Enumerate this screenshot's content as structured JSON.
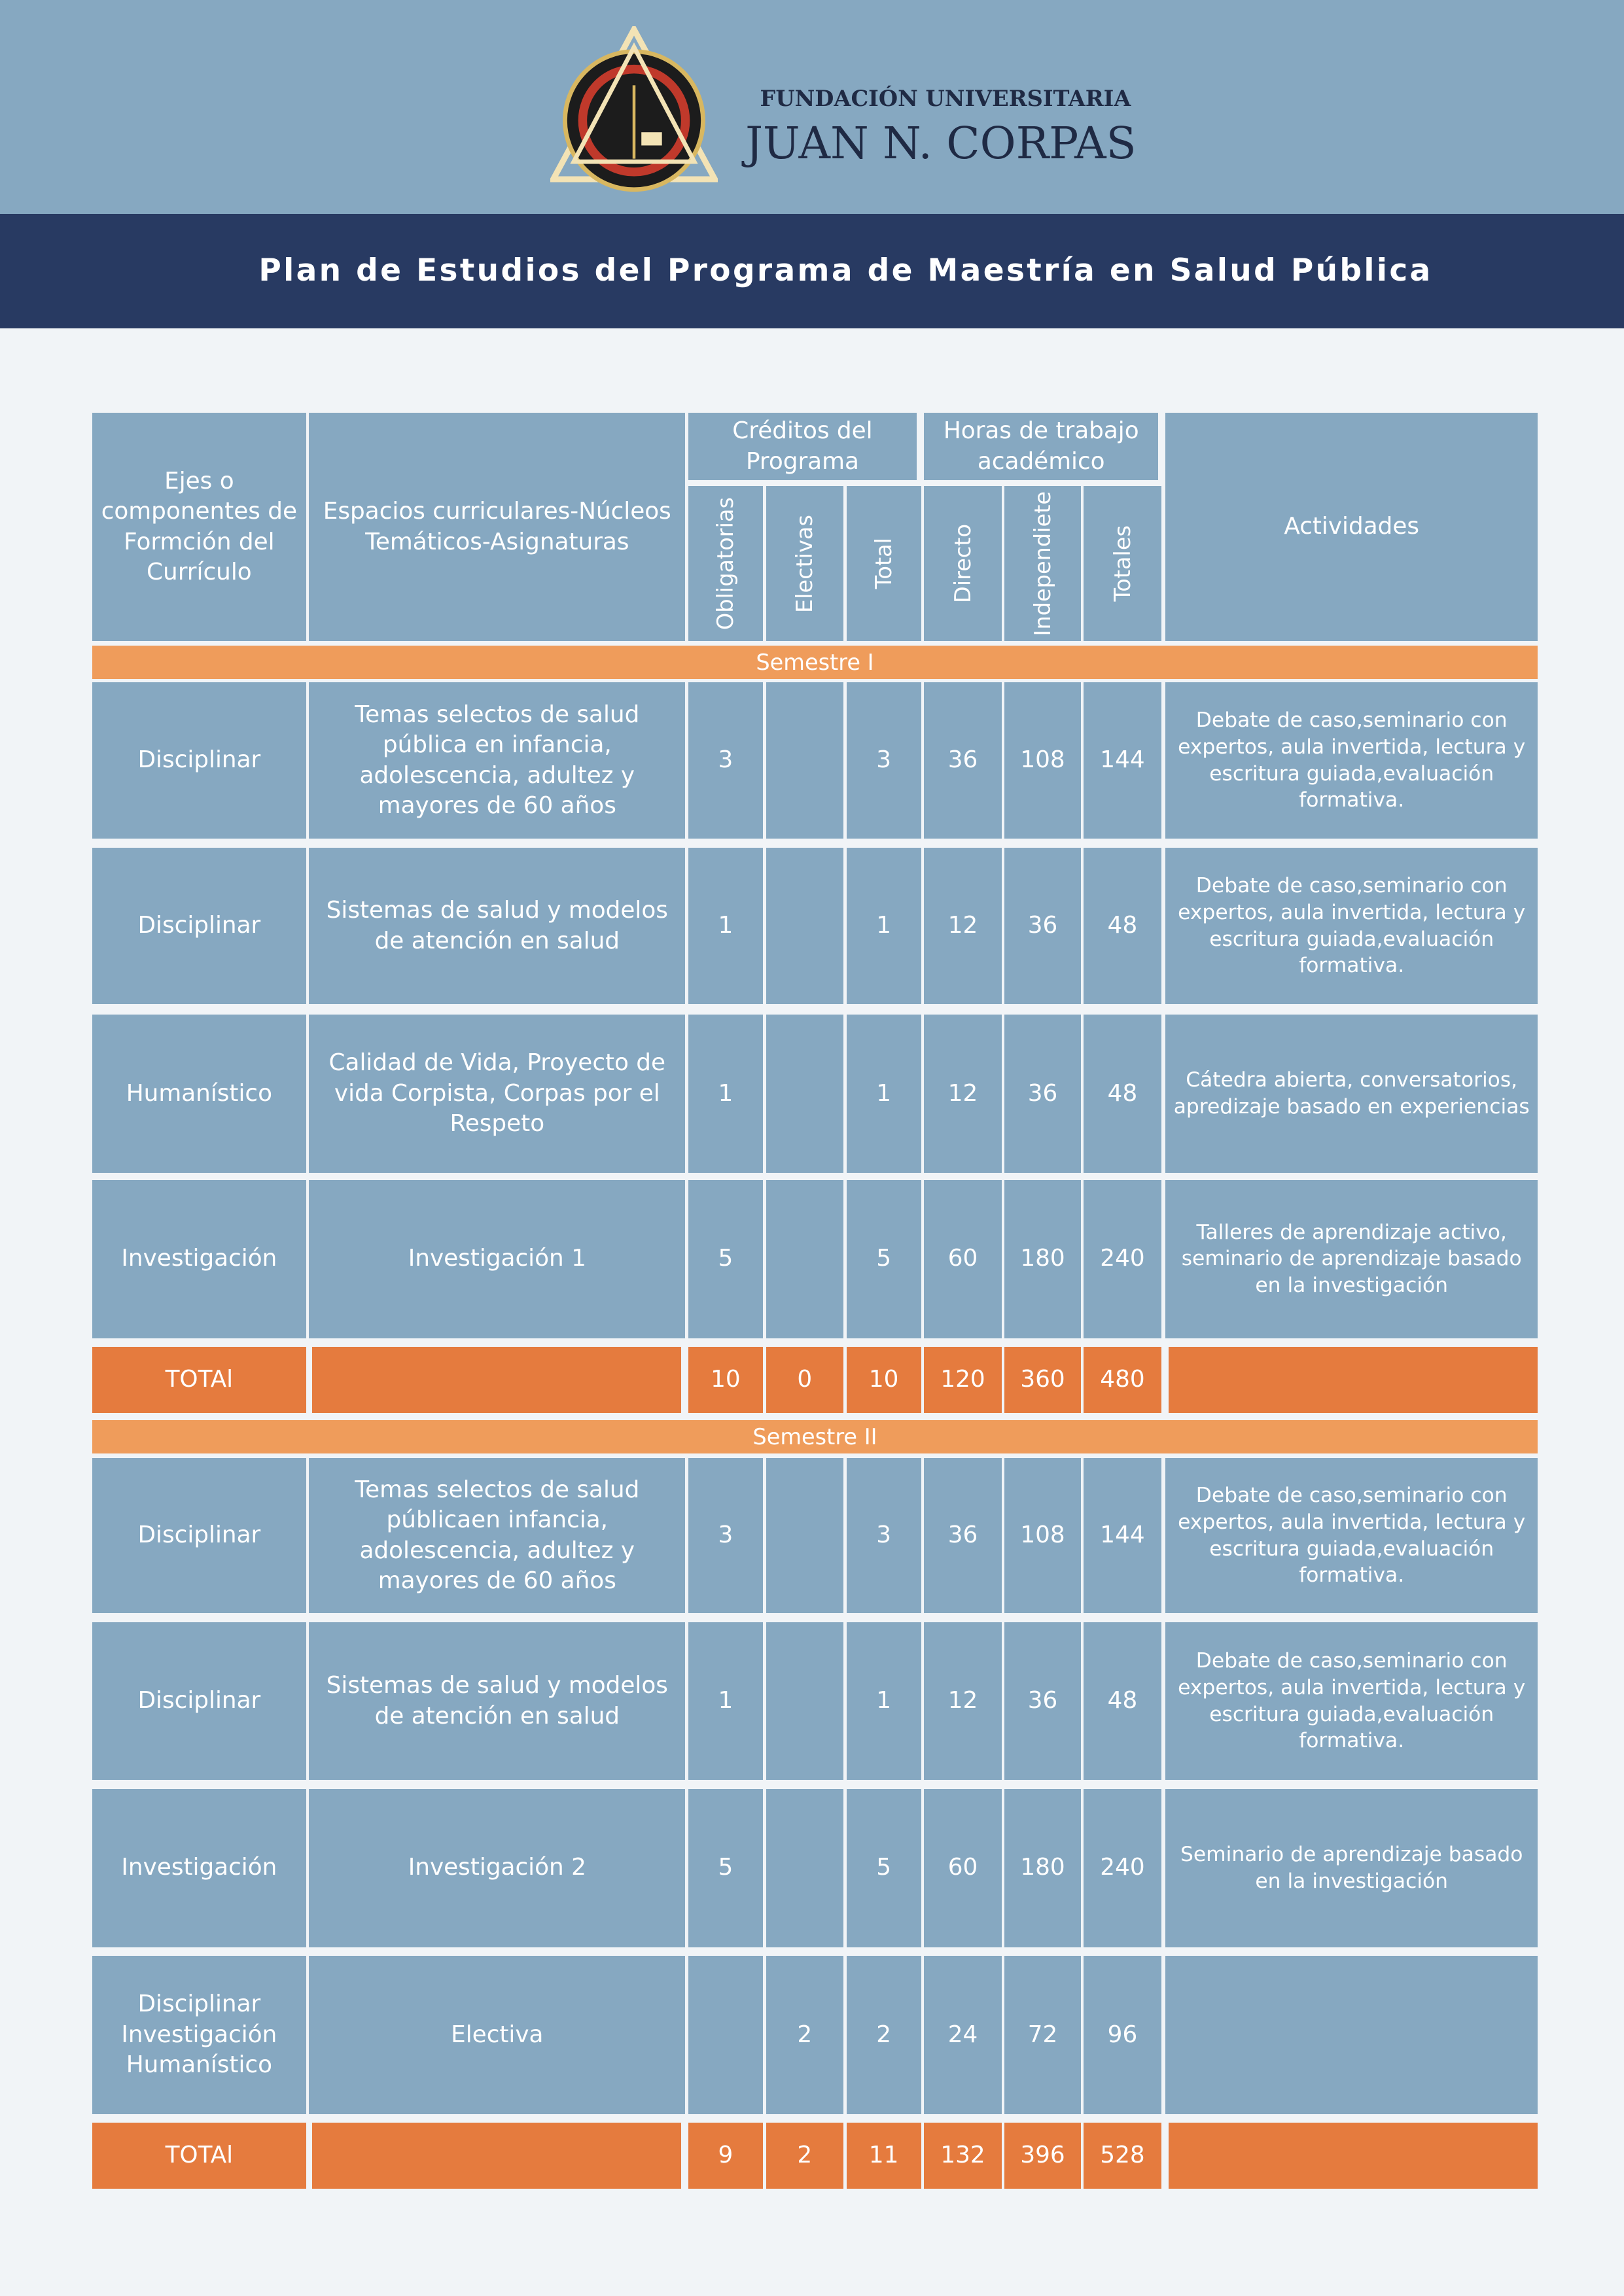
{
  "header": {
    "org_line1": "FUNDACIÓN UNIVERSITARIA",
    "org_line2": "JUAN N. CORPAS",
    "title": "Plan de Estudios del Programa de Maestría en Salud Pública"
  },
  "table": {
    "columns": [
      "Ejes o componentes de Formción del Currículo",
      "Espacios curriculares-Núcleos Temáticos-Asignaturas",
      "Actividades"
    ],
    "group_headers": [
      "Créditos del Programa",
      "Horas de trabajo académico"
    ],
    "sub_headers": [
      "Obligatorias",
      "Electivas",
      "Total",
      "Directo",
      "Independiete",
      "Totales"
    ],
    "semesters": [
      {
        "name": "Semestre I",
        "rows": [
          [
            "Disciplinar",
            "Temas selectos de salud pública en infancia, adolescencia, adultez y mayores de 60 años",
            3,
            null,
            3,
            36,
            108,
            144,
            "Debate de caso,seminario con expertos, aula invertida, lectura y escritura guiada,evaluación formativa."
          ],
          [
            "Disciplinar",
            "Sistemas de salud y modelos de atención en salud",
            1,
            null,
            1,
            12,
            36,
            48,
            "Debate de caso,seminario con expertos, aula invertida, lectura y escritura guiada,evaluación formativa."
          ],
          [
            "Humanístico",
            "Calidad de Vida, Proyecto de vida Corpista, Corpas por el Respeto",
            1,
            null,
            1,
            12,
            36,
            48,
            "Cátedra abierta, conversatorios, apredizaje basado en experiencias"
          ],
          [
            "Investigación",
            "Investigación 1",
            5,
            null,
            5,
            60,
            180,
            240,
            "Talleres de aprendizaje activo, seminario de aprendizaje basado en la investigación"
          ]
        ],
        "total": [
          "TOTAl",
          10,
          0,
          10,
          120,
          360,
          480
        ]
      },
      {
        "name": "Semestre II",
        "rows": [
          [
            "Disciplinar",
            "Temas selectos de salud públicaen infancia, adolescencia, adultez y mayores de 60 años",
            3,
            null,
            3,
            36,
            108,
            144,
            "Debate de caso,seminario con expertos, aula invertida, lectura y escritura guiada,evaluación formativa."
          ],
          [
            "Disciplinar",
            "Sistemas de salud y modelos de atención en salud",
            1,
            null,
            1,
            12,
            36,
            48,
            "Debate de caso,seminario con expertos, aula invertida, lectura y escritura guiada,evaluación formativa."
          ],
          [
            "Investigación",
            "Investigación 2",
            5,
            null,
            5,
            60,
            180,
            240,
            "Seminario de aprendizaje basado en la investigación"
          ],
          [
            "Disciplinar Investigación Humanístico",
            "Electiva",
            null,
            2,
            2,
            24,
            72,
            96,
            null
          ]
        ],
        "total": [
          "TOTAl",
          9,
          2,
          11,
          132,
          396,
          528
        ]
      }
    ]
  }
}
